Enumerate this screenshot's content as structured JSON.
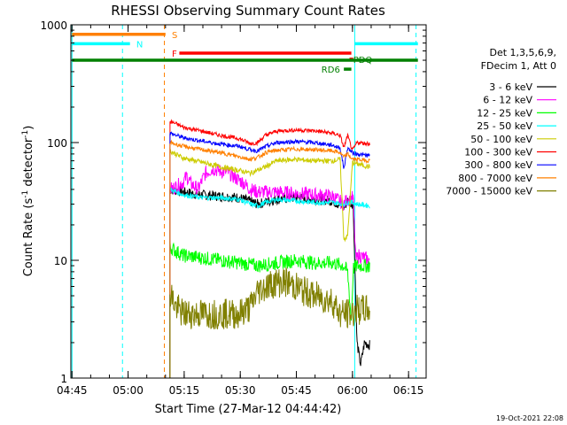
{
  "chart_data": {
    "type": "line",
    "title": "RHESSI Observing Summary Count Rates",
    "xlabel": "Start Time (27-Mar-12 04:44:42)",
    "ylabel_main": "Count Rate (s",
    "ylabel_sup1": "-1",
    "ylabel_mid": " detector",
    "ylabel_sup2": "-1",
    "ylabel_end": ")",
    "yscale": "log",
    "ylim": [
      1,
      1000
    ],
    "xlim_minutes": [
      0,
      95
    ],
    "x_ticks": [
      {
        "label": "04:45",
        "t": 0.3
      },
      {
        "label": "05:00",
        "t": 15.3
      },
      {
        "label": "05:15",
        "t": 30.3
      },
      {
        "label": "05:30",
        "t": 45.3
      },
      {
        "label": "05:45",
        "t": 60.3
      },
      {
        "label": "06:00",
        "t": 75.3
      },
      {
        "label": "06:15",
        "t": 90.3
      }
    ],
    "y_ticks": [
      {
        "label": "1",
        "v": 1
      },
      {
        "label": "10",
        "v": 10
      },
      {
        "label": "100",
        "v": 100
      },
      {
        "label": "1000",
        "v": 1000
      }
    ],
    "legend_header": [
      "Det 1,3,5,6,9,",
      "FDecim 1, Att 0"
    ],
    "series": [
      {
        "name": "3 - 6 keV",
        "color": "#000000",
        "points": [
          [
            26.5,
            40
          ],
          [
            30,
            38
          ],
          [
            35,
            36
          ],
          [
            40,
            35
          ],
          [
            45,
            34
          ],
          [
            50,
            30
          ],
          [
            55,
            33
          ],
          [
            60,
            34
          ],
          [
            65,
            33
          ],
          [
            70,
            32
          ],
          [
            73,
            28
          ],
          [
            74,
            32
          ],
          [
            75.5,
            30
          ],
          [
            76.5,
            2
          ],
          [
            77.5,
            1.3
          ],
          [
            78.5,
            2
          ],
          [
            80,
            1.9
          ]
        ]
      },
      {
        "name": "6 - 12 keV",
        "color": "#ff00ff",
        "points": [
          [
            26.5,
            40
          ],
          [
            28,
            42
          ],
          [
            30,
            46
          ],
          [
            31,
            52
          ],
          [
            32,
            45
          ],
          [
            34,
            40
          ],
          [
            36,
            55
          ],
          [
            38,
            60
          ],
          [
            40,
            57
          ],
          [
            42,
            56
          ],
          [
            44,
            50
          ],
          [
            46,
            46
          ],
          [
            48,
            40
          ],
          [
            50,
            38
          ],
          [
            55,
            38
          ],
          [
            60,
            37
          ],
          [
            65,
            36
          ],
          [
            70,
            35
          ],
          [
            73,
            30
          ],
          [
            74,
            33
          ],
          [
            75.5,
            34
          ],
          [
            76.2,
            10
          ],
          [
            77,
            11
          ],
          [
            80,
            10
          ]
        ]
      },
      {
        "name": "12 - 25 keV",
        "color": "#00ff00",
        "points": [
          [
            26.5,
            13
          ],
          [
            28,
            12
          ],
          [
            30,
            11
          ],
          [
            35,
            10.5
          ],
          [
            40,
            10
          ],
          [
            45,
            9.5
          ],
          [
            50,
            9
          ],
          [
            55,
            9.5
          ],
          [
            60,
            10
          ],
          [
            65,
            9.5
          ],
          [
            70,
            9.5
          ],
          [
            73,
            9
          ],
          [
            74,
            8
          ],
          [
            75,
            3
          ],
          [
            75.5,
            8.5
          ],
          [
            76.5,
            9
          ],
          [
            80,
            9
          ]
        ]
      },
      {
        "name": "25 - 50 keV",
        "color": "#00ffff",
        "points": [
          [
            26.5,
            40
          ],
          [
            30,
            36
          ],
          [
            35,
            34
          ],
          [
            40,
            34
          ],
          [
            45,
            33
          ],
          [
            48,
            30
          ],
          [
            50,
            29
          ],
          [
            52,
            31
          ],
          [
            55,
            33
          ],
          [
            60,
            32
          ],
          [
            65,
            31
          ],
          [
            70,
            31
          ],
          [
            73,
            30
          ],
          [
            74,
            31
          ],
          [
            75.3,
            31
          ],
          [
            76.5,
            30
          ],
          [
            80,
            29
          ]
        ]
      },
      {
        "name": "50 - 100 keV",
        "color": "#cccc00",
        "points": [
          [
            26.5,
            85
          ],
          [
            30,
            74
          ],
          [
            35,
            68
          ],
          [
            40,
            62
          ],
          [
            45,
            58
          ],
          [
            48,
            55
          ],
          [
            52,
            62
          ],
          [
            55,
            70
          ],
          [
            60,
            72
          ],
          [
            65,
            70
          ],
          [
            70,
            70
          ],
          [
            72,
            72
          ],
          [
            73,
            15
          ],
          [
            74,
            16
          ],
          [
            75.3,
            68
          ],
          [
            76.5,
            66
          ],
          [
            80,
            62
          ]
        ]
      },
      {
        "name": "100 - 300 keV",
        "color": "#ff0000",
        "points": [
          [
            26.5,
            150
          ],
          [
            28,
            145
          ],
          [
            30,
            135
          ],
          [
            35,
            125
          ],
          [
            40,
            115
          ],
          [
            45,
            108
          ],
          [
            48,
            98
          ],
          [
            50,
            100
          ],
          [
            52,
            115
          ],
          [
            55,
            125
          ],
          [
            60,
            128
          ],
          [
            65,
            126
          ],
          [
            70,
            120
          ],
          [
            72,
            115
          ],
          [
            73,
            90
          ],
          [
            74,
            115
          ],
          [
            75.3,
            85
          ],
          [
            76.5,
            100
          ],
          [
            80,
            98
          ]
        ]
      },
      {
        "name": "300 - 800 keV",
        "color": "#0000ff",
        "points": [
          [
            26.5,
            120
          ],
          [
            30,
            110
          ],
          [
            35,
            103
          ],
          [
            40,
            97
          ],
          [
            45,
            93
          ],
          [
            48,
            87
          ],
          [
            50,
            85
          ],
          [
            52,
            92
          ],
          [
            55,
            100
          ],
          [
            60,
            102
          ],
          [
            65,
            100
          ],
          [
            70,
            95
          ],
          [
            72,
            90
          ],
          [
            73,
            60
          ],
          [
            74,
            90
          ],
          [
            75.3,
            82
          ],
          [
            76.5,
            80
          ],
          [
            80,
            77
          ]
        ]
      },
      {
        "name": "800 - 7000 keV",
        "color": "#ff8000",
        "points": [
          [
            26.5,
            100
          ],
          [
            30,
            93
          ],
          [
            35,
            87
          ],
          [
            40,
            82
          ],
          [
            45,
            76
          ],
          [
            48,
            72
          ],
          [
            50,
            75
          ],
          [
            52,
            82
          ],
          [
            55,
            86
          ],
          [
            60,
            88
          ],
          [
            65,
            87
          ],
          [
            70,
            85
          ],
          [
            72,
            82
          ],
          [
            73,
            75
          ],
          [
            74,
            80
          ],
          [
            75.3,
            72
          ],
          [
            76.5,
            72
          ],
          [
            80,
            70
          ]
        ]
      },
      {
        "name": "7000 - 15000 keV",
        "color": "#808000",
        "points": [
          [
            26.5,
            5.5
          ],
          [
            28,
            4
          ],
          [
            30,
            3.5
          ],
          [
            35,
            3.5
          ],
          [
            40,
            3.5
          ],
          [
            45,
            3.5
          ],
          [
            48,
            4
          ],
          [
            50,
            5.5
          ],
          [
            52,
            6
          ],
          [
            55,
            6.5
          ],
          [
            58,
            6.5
          ],
          [
            60,
            6
          ],
          [
            62,
            5.5
          ],
          [
            65,
            5
          ],
          [
            70,
            4.5
          ],
          [
            72,
            3.5
          ],
          [
            73,
            3.5
          ],
          [
            75.3,
            3.5
          ],
          [
            76.5,
            3.8
          ],
          [
            80,
            3.8
          ]
        ]
      }
    ],
    "vlines": [
      {
        "t": 0.3,
        "color": "#00ffff",
        "style": "solid"
      },
      {
        "t": 13.8,
        "color": "#00ffff",
        "style": "dashed"
      },
      {
        "t": 25.0,
        "color": "#ff8000",
        "style": "dashed"
      },
      {
        "t": 75.9,
        "color": "#00ffff",
        "style": "solid"
      },
      {
        "t": 92.3,
        "color": "#00ffff",
        "style": "dashed"
      }
    ],
    "flags": [
      {
        "label": "S",
        "color": "#ff8000",
        "segments": [
          [
            0.3,
            25.3
          ]
        ],
        "level": 830,
        "label_t": 27.0,
        "label_color": "#ff8000"
      },
      {
        "label": "N",
        "color": "#00ffff",
        "segments": [
          [
            0.3,
            15.8
          ],
          [
            75.9,
            92.8
          ]
        ],
        "level": 690,
        "label_t": 17.5,
        "label_color": "#00ffff"
      },
      {
        "label": "F",
        "color": "#ff0000",
        "segments": [
          [
            29.0,
            75.0
          ]
        ],
        "level": 575,
        "label_t": 27.0,
        "label_color": "#ff0000"
      },
      {
        "label": "PDQ",
        "color": "#ff0000",
        "segments": [
          [
            74.5,
            75.5
          ]
        ],
        "level": 510,
        "label_t": 75.5,
        "label_color": "#008000"
      },
      {
        "label": "",
        "color": "#008000",
        "segments": [
          [
            0.3,
            92.8
          ]
        ],
        "level": 500,
        "label_t": 0,
        "label_color": "#008000"
      },
      {
        "label": "RD6",
        "color": "#008000",
        "segments": [
          [
            73.0,
            75.0
          ]
        ],
        "level": 420,
        "label_t": 67.0,
        "label_color": "#008000"
      }
    ],
    "timestamp": "19-Oct-2021 22:08"
  }
}
